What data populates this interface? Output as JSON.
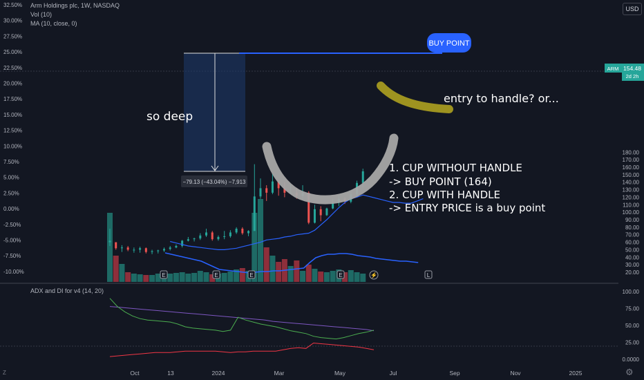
{
  "header": {
    "symbol_line": "Arm Holdings plc, 1W, NASDAQ",
    "vol_line": "Vol (10)",
    "ma_line": "MA (10, close, 0)",
    "currency": "USD"
  },
  "colors": {
    "background": "#131722",
    "up": "#26a69a",
    "down": "#ef5350",
    "ma": "#2962ff",
    "adx": "#7e57c2",
    "di_plus": "#4caf50",
    "di_minus": "#f23645",
    "buy_line": "#2962ff",
    "cup_stroke": "#a6a6a6",
    "handle_stroke": "#9e9320"
  },
  "chart_data": {
    "type": "candlestick",
    "price_axis_ticks": [
      "180.00",
      "170.00",
      "160.00",
      "150.00",
      "140.00",
      "130.00",
      "120.00",
      "110.00",
      "100.00",
      "90.00",
      "80.00",
      "70.00",
      "60.00",
      "50.00",
      "40.00",
      "30.00",
      "20.00"
    ],
    "percent_axis_ticks": [
      "32.50%",
      "30.00%",
      "27.50%",
      "25.00%",
      "22.50%",
      "20.00%",
      "17.50%",
      "15.00%",
      "12.50%",
      "10.00%",
      "7.50%",
      "5.00%",
      "2.50%",
      "0.00%",
      "-2.50%",
      "-5.00%",
      "-7.50%",
      "-10.00%"
    ],
    "x_tick_labels": [
      "Oct",
      "13",
      "2024",
      "Mar",
      "May",
      "Jul",
      "Sep",
      "Nov",
      "2025"
    ],
    "last_price_tag": {
      "symbol": "ARM",
      "value": "154.48",
      "countdown": "2d 2h"
    },
    "candles": [
      {
        "o": 60,
        "h": 78,
        "l": 55,
        "c": 62
      },
      {
        "o": 60,
        "h": 60,
        "l": 50,
        "c": 52
      },
      {
        "o": 52,
        "h": 56,
        "l": 47,
        "c": 53
      },
      {
        "o": 53,
        "h": 55,
        "l": 48,
        "c": 50
      },
      {
        "o": 50,
        "h": 53,
        "l": 46,
        "c": 50
      },
      {
        "o": 50,
        "h": 54,
        "l": 46,
        "c": 52
      },
      {
        "o": 52,
        "h": 53,
        "l": 45,
        "c": 47
      },
      {
        "o": 47,
        "h": 50,
        "l": 44,
        "c": 48
      },
      {
        "o": 48,
        "h": 50,
        "l": 45,
        "c": 49
      },
      {
        "o": 49,
        "h": 53,
        "l": 47,
        "c": 51
      },
      {
        "o": 51,
        "h": 55,
        "l": 49,
        "c": 53
      },
      {
        "o": 53,
        "h": 57,
        "l": 52,
        "c": 55
      },
      {
        "o": 55,
        "h": 63,
        "l": 53,
        "c": 62
      },
      {
        "o": 62,
        "h": 67,
        "l": 61,
        "c": 64
      },
      {
        "o": 64,
        "h": 66,
        "l": 61,
        "c": 65
      },
      {
        "o": 65,
        "h": 72,
        "l": 63,
        "c": 69
      },
      {
        "o": 69,
        "h": 78,
        "l": 67,
        "c": 73
      },
      {
        "o": 73,
        "h": 75,
        "l": 62,
        "c": 64
      },
      {
        "o": 64,
        "h": 69,
        "l": 62,
        "c": 67
      },
      {
        "o": 67,
        "h": 75,
        "l": 64,
        "c": 68
      },
      {
        "o": 68,
        "h": 76,
        "l": 66,
        "c": 73
      },
      {
        "o": 73,
        "h": 80,
        "l": 71,
        "c": 78
      },
      {
        "o": 78,
        "h": 80,
        "l": 70,
        "c": 72
      },
      {
        "o": 72,
        "h": 76,
        "l": 68,
        "c": 75
      },
      {
        "o": 75,
        "h": 164,
        "l": 76,
        "c": 121
      },
      {
        "o": 121,
        "h": 145,
        "l": 118,
        "c": 132
      },
      {
        "o": 132,
        "h": 136,
        "l": 115,
        "c": 126
      },
      {
        "o": 126,
        "h": 152,
        "l": 124,
        "c": 141
      },
      {
        "o": 141,
        "h": 142,
        "l": 122,
        "c": 132
      },
      {
        "o": 132,
        "h": 140,
        "l": 120,
        "c": 126
      },
      {
        "o": 126,
        "h": 137,
        "l": 125,
        "c": 126
      },
      {
        "o": 126,
        "h": 132,
        "l": 118,
        "c": 122
      },
      {
        "o": 122,
        "h": 136,
        "l": 118,
        "c": 126
      },
      {
        "o": 126,
        "h": 128,
        "l": 84,
        "c": 86
      },
      {
        "o": 86,
        "h": 110,
        "l": 85,
        "c": 104
      },
      {
        "o": 104,
        "h": 108,
        "l": 88,
        "c": 96
      },
      {
        "o": 96,
        "h": 106,
        "l": 95,
        "c": 105
      },
      {
        "o": 105,
        "h": 118,
        "l": 104,
        "c": 113
      },
      {
        "o": 113,
        "h": 122,
        "l": 108,
        "c": 118
      },
      {
        "o": 118,
        "h": 120,
        "l": 111,
        "c": 114
      },
      {
        "o": 114,
        "h": 128,
        "l": 112,
        "c": 124
      },
      {
        "o": 124,
        "h": 142,
        "l": 122,
        "c": 139
      },
      {
        "o": 139,
        "h": 158,
        "l": 133,
        "c": 154.48
      }
    ],
    "ma": [
      61,
      59,
      57,
      55,
      54,
      53,
      52,
      51,
      50,
      50,
      51,
      52,
      54,
      56,
      58,
      60,
      63,
      64,
      65,
      67,
      68,
      70,
      71,
      72,
      76,
      83,
      90,
      98,
      106,
      113,
      118,
      120,
      123,
      121,
      119,
      117,
      115,
      113,
      113,
      112,
      112,
      115,
      118
    ],
    "volume": [
      100,
      38,
      26,
      14,
      12,
      11,
      10,
      10,
      12,
      11,
      12,
      13,
      14,
      12,
      13,
      16,
      14,
      11,
      12,
      13,
      15,
      18,
      20,
      16,
      100,
      120,
      50,
      38,
      29,
      33,
      23,
      31,
      16,
      25,
      19,
      15,
      14,
      16,
      18,
      14,
      17,
      14,
      12
    ],
    "volume_ma": [
      42,
      40,
      38,
      36,
      34,
      32,
      30,
      26,
      22,
      18,
      17,
      16,
      15,
      14,
      13,
      14,
      15,
      15,
      16,
      16,
      17,
      18,
      19,
      20,
      28,
      35,
      38,
      40,
      40,
      41,
      41,
      40,
      38,
      37,
      36,
      34,
      33,
      32,
      31,
      30,
      30,
      29,
      28
    ],
    "adx_axis_ticks": [
      "100.00",
      "75.00",
      "50.00",
      "25.00",
      "0.0000"
    ],
    "adx": [
      78,
      77,
      76,
      75,
      74,
      73,
      72,
      71,
      70,
      69,
      68,
      67,
      66,
      65,
      64,
      63,
      62,
      61,
      60,
      59,
      58,
      56,
      55,
      54,
      53,
      52,
      51,
      50,
      49,
      48,
      47,
      46,
      45,
      44,
      42
    ],
    "di_plus": [
      90,
      78,
      70,
      64,
      60,
      58,
      57,
      56,
      55,
      52,
      48,
      46,
      45,
      44,
      43,
      41,
      43,
      62,
      58,
      55,
      52,
      50,
      48,
      45,
      42,
      40,
      38,
      34,
      32,
      31,
      30,
      32,
      35,
      38,
      40,
      43
    ],
    "di_minus": [
      4,
      5,
      6,
      7,
      8,
      9,
      10,
      10,
      10,
      11,
      12,
      12,
      12,
      12,
      12,
      11,
      10,
      11,
      11,
      12,
      12,
      12,
      12,
      14,
      16,
      17,
      16,
      24,
      23,
      22,
      21,
      20,
      19,
      18,
      16,
      14
    ],
    "measure_label": "−79.13 (−43.04%) −7,913",
    "buy_point_value": 164,
    "indicator_label": "ADX and DI for v4 (14, 20)"
  },
  "annotations": {
    "buy_point": "BUY POINT",
    "so_deep": "so deep",
    "entry_handle": "entry to handle? or...",
    "notes": [
      "1. CUP WITHOUT HANDLE",
      "-> BUY POINT (164)",
      "2. CUP WITH HANDLE",
      "-> ENTRY PRICE is a buy point"
    ]
  }
}
